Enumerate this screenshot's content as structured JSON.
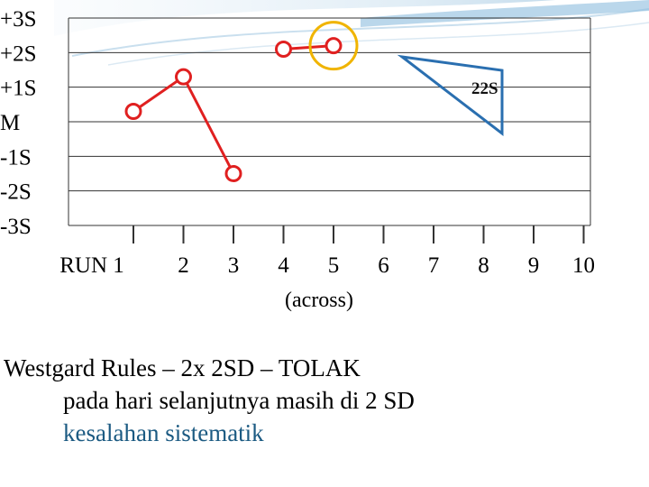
{
  "chart_data": {
    "type": "line",
    "y_tick_labels": [
      "+3S",
      "+2S",
      "+1S",
      "M",
      "-1S",
      "-2S",
      "-3S"
    ],
    "y_tick_values": [
      3,
      2,
      1,
      0,
      -1,
      -2,
      -3
    ],
    "x_tick_labels": [
      "RUN 1",
      "2",
      "3",
      "4",
      "5",
      "6",
      "7",
      "8",
      "9",
      "10"
    ],
    "x_unit_label": "(across)",
    "series": [
      {
        "x": [
          1,
          2,
          3
        ],
        "values": [
          0.3,
          1.3,
          -1.5
        ],
        "color": "#e02020"
      },
      {
        "x": [
          4,
          5
        ],
        "values": [
          2.1,
          2.2
        ],
        "color": "#e02020"
      }
    ],
    "highlighted_point": {
      "x": 5,
      "value": 2.2,
      "ring_color": "#f0b400"
    },
    "rule_annotation": {
      "label": "22S",
      "color": "#2a6fb0"
    },
    "line_color": "#e02020"
  },
  "caption": {
    "line1": "Westgard Rules – 2x 2SD – TOLAK",
    "line2": "pada hari selanjutnya masih di 2 SD",
    "line3": "kesalahan sistematik"
  }
}
